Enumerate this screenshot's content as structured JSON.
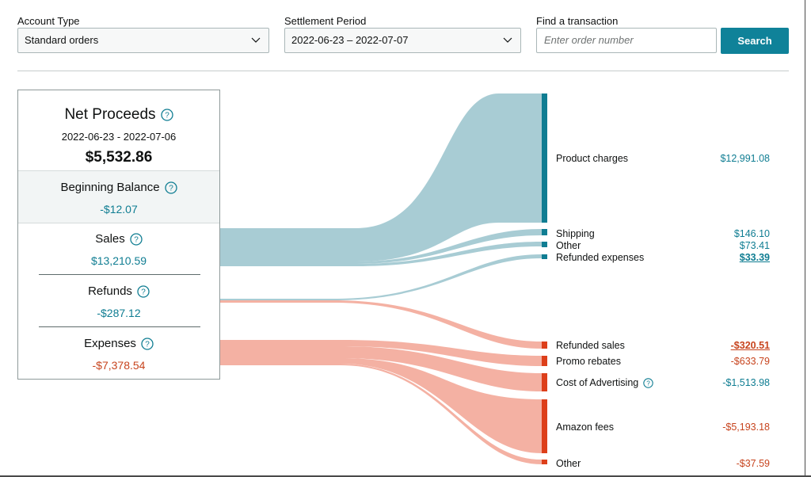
{
  "filters": {
    "account_type": {
      "label": "Account Type",
      "value": "Standard orders"
    },
    "settlement_period": {
      "label": "Settlement Period",
      "value": "2022-06-23 – 2022-07-07"
    },
    "find_transaction": {
      "label": "Find a transaction",
      "placeholder": "Enter order number",
      "button": "Search"
    }
  },
  "summary": {
    "net_proceeds": {
      "title": "Net Proceeds",
      "date_range": "2022-06-23 - 2022-07-06",
      "amount": "$5,532.86"
    },
    "beginning_balance": {
      "title": "Beginning Balance",
      "amount": "-$12.07"
    },
    "sales": {
      "title": "Sales",
      "amount": "$13,210.59"
    },
    "refunds": {
      "title": "Refunds",
      "amount": "-$287.12"
    },
    "expenses": {
      "title": "Expenses",
      "amount": "-$7,378.54"
    }
  },
  "breakdown": [
    {
      "label": "Product charges",
      "amount": "$12,991.08",
      "tone": "teal"
    },
    {
      "label": "Shipping",
      "amount": "$146.10",
      "tone": "teal"
    },
    {
      "label": "Other",
      "amount": "$73.41",
      "tone": "teal"
    },
    {
      "label": "Refunded expenses",
      "amount": "$33.39",
      "tone": "teal",
      "link": true
    },
    {
      "label": "Refunded sales",
      "amount": "-$320.51",
      "tone": "red",
      "link": true
    },
    {
      "label": "Promo rebates",
      "amount": "-$633.79",
      "tone": "red"
    },
    {
      "label": "Cost of Advertising",
      "amount": "-$1,513.98",
      "tone": "teal",
      "help": true
    },
    {
      "label": "Amazon fees",
      "amount": "-$5,193.18",
      "tone": "red"
    },
    {
      "label": "Other",
      "amount": "-$37.59",
      "tone": "red"
    }
  ],
  "colors": {
    "positive_flow": "#a8ccd4",
    "positive_bar": "#0f7d92",
    "negative_flow": "#f4b1a3",
    "negative_bar": "#dd3f1a",
    "button": "#0f8299"
  }
}
